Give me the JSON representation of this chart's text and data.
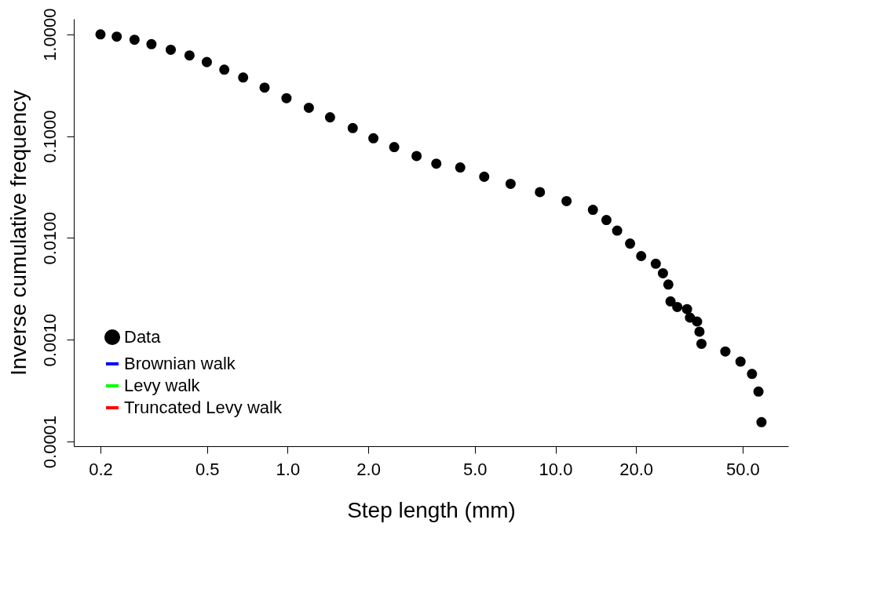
{
  "chart_data": {
    "type": "scatter",
    "xlabel": "Step length (mm)",
    "ylabel": "Inverse cumulative frequency",
    "log": "xy",
    "grid": false,
    "legend": "bottom left",
    "marker": "circle",
    "xlim": [
      0.159,
      74
    ],
    "ylim": [
      9e-05,
      1.42
    ],
    "xticks": [
      {
        "value": 0.2,
        "label": "0.2"
      },
      {
        "value": 0.5,
        "label": "0.5"
      },
      {
        "value": 1,
        "label": "1.0"
      },
      {
        "value": 2,
        "label": "2.0"
      },
      {
        "value": 5,
        "label": "5.0"
      },
      {
        "value": 10,
        "label": "10.0"
      },
      {
        "value": 20,
        "label": "20.0"
      },
      {
        "value": 50,
        "label": "50.0"
      }
    ],
    "yticks": [
      {
        "value": 0.0001,
        "label": "0.0001"
      },
      {
        "value": 0.001,
        "label": "0.0010"
      },
      {
        "value": 0.01,
        "label": "0.0100"
      },
      {
        "value": 0.1,
        "label": "0.1000"
      },
      {
        "value": 1,
        "label": "1.0000"
      }
    ],
    "series": [
      {
        "name": "Data",
        "color": "#000000",
        "x": [
          0.2,
          0.23,
          0.268,
          0.31,
          0.366,
          0.43,
          0.499,
          0.58,
          0.682,
          0.82,
          0.99,
          1.2,
          1.44,
          1.75,
          2.09,
          2.5,
          3.03,
          3.59,
          4.41,
          5.42,
          6.8,
          8.75,
          11.0,
          13.8,
          15.5,
          17.0,
          19.0,
          20.9,
          23.7,
          25.2,
          26.4,
          26.9,
          28.5,
          31.0,
          31.8,
          33.8,
          34.5,
          35.1,
          43.1,
          49.1,
          54.2,
          57.3,
          58.8
        ],
        "values": [
          1.0,
          0.95,
          0.885,
          0.8,
          0.706,
          0.62,
          0.534,
          0.45,
          0.377,
          0.3,
          0.236,
          0.19,
          0.153,
          0.12,
          0.0953,
          0.078,
          0.0638,
          0.0537,
          0.0492,
          0.0399,
          0.034,
          0.0282,
          0.023,
          0.0189,
          0.015,
          0.0118,
          0.0088,
          0.00664,
          0.00558,
          0.0045,
          0.00349,
          0.00238,
          0.0021,
          0.002,
          0.00165,
          0.00151,
          0.0012,
          0.000912,
          0.000767,
          0.000611,
          0.000462,
          0.00031,
          0.000155
        ]
      },
      {
        "name": "Brownian walk",
        "type": "line",
        "color": "#0000ff"
      },
      {
        "name": "Levy walk",
        "type": "line",
        "color": "#00ff00"
      },
      {
        "name": "Truncated Levy walk",
        "type": "line",
        "color": "#ff0000"
      }
    ]
  }
}
